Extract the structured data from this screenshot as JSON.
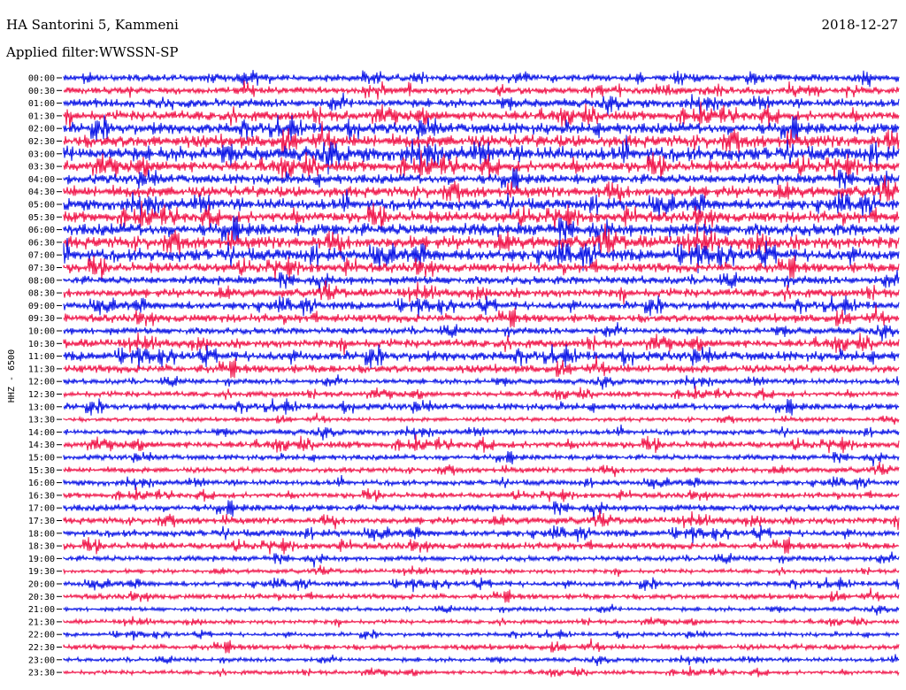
{
  "header": {
    "station": "HA Santorini 5, Kammeni",
    "date": "2018-12-27",
    "filter_label": "Applied filter:",
    "filter_value": "WWSSN-SP"
  },
  "chart_data": {
    "type": "line",
    "channel_label": "HHZ - 6500",
    "colors": {
      "odd": "#0a14e6",
      "even": "#f0154a"
    },
    "traces": [
      {
        "label": "00:00",
        "color": "#0a14e6",
        "amp": 5
      },
      {
        "label": "00:30",
        "color": "#f0154a",
        "amp": 5
      },
      {
        "label": "01:00",
        "color": "#0a14e6",
        "amp": 6
      },
      {
        "label": "01:30",
        "color": "#f0154a",
        "amp": 7
      },
      {
        "label": "02:00",
        "color": "#0a14e6",
        "amp": 8
      },
      {
        "label": "02:30",
        "color": "#f0154a",
        "amp": 9
      },
      {
        "label": "03:00",
        "color": "#0a14e6",
        "amp": 10
      },
      {
        "label": "03:30",
        "color": "#f0154a",
        "amp": 8
      },
      {
        "label": "04:00",
        "color": "#0a14e6",
        "amp": 7
      },
      {
        "label": "04:30",
        "color": "#f0154a",
        "amp": 8
      },
      {
        "label": "05:00",
        "color": "#0a14e6",
        "amp": 8
      },
      {
        "label": "05:30",
        "color": "#f0154a",
        "amp": 8
      },
      {
        "label": "06:00",
        "color": "#0a14e6",
        "amp": 9
      },
      {
        "label": "06:30",
        "color": "#f0154a",
        "amp": 9
      },
      {
        "label": "07:00",
        "color": "#0a14e6",
        "amp": 9
      },
      {
        "label": "07:30",
        "color": "#f0154a",
        "amp": 7
      },
      {
        "label": "08:00",
        "color": "#0a14e6",
        "amp": 6
      },
      {
        "label": "08:30",
        "color": "#f0154a",
        "amp": 6
      },
      {
        "label": "09:00",
        "color": "#0a14e6",
        "amp": 6
      },
      {
        "label": "09:30",
        "color": "#f0154a",
        "amp": 6
      },
      {
        "label": "10:00",
        "color": "#0a14e6",
        "amp": 5
      },
      {
        "label": "10:30",
        "color": "#f0154a",
        "amp": 6
      },
      {
        "label": "11:00",
        "color": "#0a14e6",
        "amp": 7
      },
      {
        "label": "11:30",
        "color": "#f0154a",
        "amp": 6
      },
      {
        "label": "12:00",
        "color": "#0a14e6",
        "amp": 4
      },
      {
        "label": "12:30",
        "color": "#f0154a",
        "amp": 4
      },
      {
        "label": "13:00",
        "color": "#0a14e6",
        "amp": 5
      },
      {
        "label": "13:30",
        "color": "#f0154a",
        "amp": 3
      },
      {
        "label": "14:00",
        "color": "#0a14e6",
        "amp": 4
      },
      {
        "label": "14:30",
        "color": "#f0154a",
        "amp": 5
      },
      {
        "label": "15:00",
        "color": "#0a14e6",
        "amp": 4
      },
      {
        "label": "15:30",
        "color": "#f0154a",
        "amp": 4
      },
      {
        "label": "16:00",
        "color": "#0a14e6",
        "amp": 4
      },
      {
        "label": "16:30",
        "color": "#f0154a",
        "amp": 4
      },
      {
        "label": "17:00",
        "color": "#0a14e6",
        "amp": 5
      },
      {
        "label": "17:30",
        "color": "#f0154a",
        "amp": 5
      },
      {
        "label": "18:00",
        "color": "#0a14e6",
        "amp": 5
      },
      {
        "label": "18:30",
        "color": "#f0154a",
        "amp": 5
      },
      {
        "label": "19:00",
        "color": "#0a14e6",
        "amp": 4
      },
      {
        "label": "19:30",
        "color": "#f0154a",
        "amp": 3
      },
      {
        "label": "20:00",
        "color": "#0a14e6",
        "amp": 4
      },
      {
        "label": "20:30",
        "color": "#f0154a",
        "amp": 4
      },
      {
        "label": "21:00",
        "color": "#0a14e6",
        "amp": 3
      },
      {
        "label": "21:30",
        "color": "#f0154a",
        "amp": 3
      },
      {
        "label": "22:00",
        "color": "#0a14e6",
        "amp": 3
      },
      {
        "label": "22:30",
        "color": "#f0154a",
        "amp": 4
      },
      {
        "label": "23:00",
        "color": "#0a14e6",
        "amp": 3
      },
      {
        "label": "23:30",
        "color": "#f0154a",
        "amp": 3
      }
    ]
  }
}
